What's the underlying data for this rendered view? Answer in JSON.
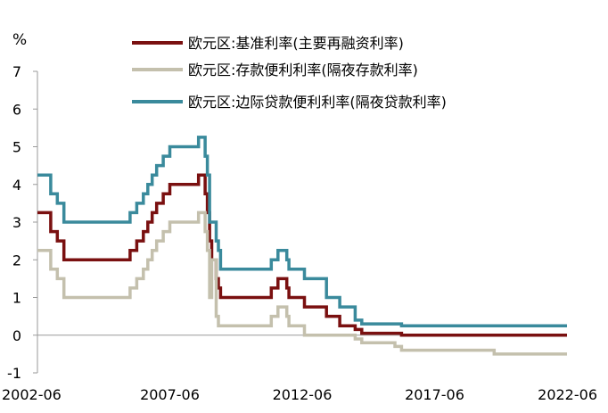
{
  "chart_data": {
    "type": "line",
    "ylabel": "%",
    "ylim": [
      -1,
      7
    ],
    "yticks": [
      -1,
      0,
      1,
      2,
      3,
      4,
      5,
      6,
      7
    ],
    "xlim": [
      "2002-06",
      "2022-06"
    ],
    "xticks": [
      "2002-06",
      "2007-06",
      "2012-06",
      "2017-06",
      "2022-06"
    ],
    "legend_position": "top",
    "series": [
      {
        "name": "欧元区:基准利率(主要再融资利率)",
        "color": "#7a1010",
        "points": [
          [
            "2002-06",
            3.25
          ],
          [
            "2002-12",
            2.75
          ],
          [
            "2003-03",
            2.5
          ],
          [
            "2003-06",
            2.0
          ],
          [
            "2005-12",
            2.25
          ],
          [
            "2006-03",
            2.5
          ],
          [
            "2006-06",
            2.75
          ],
          [
            "2006-08",
            3.0
          ],
          [
            "2006-10",
            3.25
          ],
          [
            "2006-12",
            3.5
          ],
          [
            "2007-03",
            3.75
          ],
          [
            "2007-06",
            4.0
          ],
          [
            "2008-07",
            4.25
          ],
          [
            "2008-10",
            3.75
          ],
          [
            "2008-11",
            3.25
          ],
          [
            "2008-12",
            2.5
          ],
          [
            "2009-01",
            2.0
          ],
          [
            "2009-03",
            1.5
          ],
          [
            "2009-04",
            1.25
          ],
          [
            "2009-05",
            1.0
          ],
          [
            "2011-04",
            1.25
          ],
          [
            "2011-07",
            1.5
          ],
          [
            "2011-11",
            1.25
          ],
          [
            "2011-12",
            1.0
          ],
          [
            "2012-07",
            0.75
          ],
          [
            "2013-05",
            0.5
          ],
          [
            "2013-11",
            0.25
          ],
          [
            "2014-06",
            0.15
          ],
          [
            "2014-09",
            0.05
          ],
          [
            "2016-03",
            0.0
          ],
          [
            "2022-06",
            0.0
          ]
        ]
      },
      {
        "name": "欧元区:存款便利利率(隔夜存款利率)",
        "color": "#c4c0ad",
        "points": [
          [
            "2002-06",
            2.25
          ],
          [
            "2002-12",
            1.75
          ],
          [
            "2003-03",
            1.5
          ],
          [
            "2003-06",
            1.0
          ],
          [
            "2005-12",
            1.25
          ],
          [
            "2006-03",
            1.5
          ],
          [
            "2006-06",
            1.75
          ],
          [
            "2006-08",
            2.0
          ],
          [
            "2006-10",
            2.25
          ],
          [
            "2006-12",
            2.5
          ],
          [
            "2007-03",
            2.75
          ],
          [
            "2007-06",
            3.0
          ],
          [
            "2008-07",
            3.25
          ],
          [
            "2008-10",
            2.75
          ],
          [
            "2008-11",
            2.25
          ],
          [
            "2008-12",
            1.0
          ],
          [
            "2009-01",
            2.0
          ],
          [
            "2009-03",
            0.5
          ],
          [
            "2009-04",
            0.25
          ],
          [
            "2011-04",
            0.5
          ],
          [
            "2011-07",
            0.75
          ],
          [
            "2011-11",
            0.5
          ],
          [
            "2011-12",
            0.25
          ],
          [
            "2012-07",
            0.0
          ],
          [
            "2014-06",
            -0.1
          ],
          [
            "2014-09",
            -0.2
          ],
          [
            "2015-12",
            -0.3
          ],
          [
            "2016-03",
            -0.4
          ],
          [
            "2019-09",
            -0.5
          ],
          [
            "2022-06",
            -0.5
          ]
        ]
      },
      {
        "name": "欧元区:边际贷款便利利率(隔夜贷款利率)",
        "color": "#3a8a9c",
        "points": [
          [
            "2002-06",
            4.25
          ],
          [
            "2002-12",
            3.75
          ],
          [
            "2003-03",
            3.5
          ],
          [
            "2003-06",
            3.0
          ],
          [
            "2005-12",
            3.25
          ],
          [
            "2006-03",
            3.5
          ],
          [
            "2006-06",
            3.75
          ],
          [
            "2006-08",
            4.0
          ],
          [
            "2006-10",
            4.25
          ],
          [
            "2006-12",
            4.5
          ],
          [
            "2007-03",
            4.75
          ],
          [
            "2007-06",
            5.0
          ],
          [
            "2008-07",
            5.25
          ],
          [
            "2008-10",
            4.75
          ],
          [
            "2008-11",
            4.25
          ],
          [
            "2008-12",
            3.0
          ],
          [
            "2009-01",
            3.0
          ],
          [
            "2009-03",
            2.5
          ],
          [
            "2009-04",
            2.25
          ],
          [
            "2009-05",
            1.75
          ],
          [
            "2011-04",
            2.0
          ],
          [
            "2011-07",
            2.25
          ],
          [
            "2011-11",
            2.0
          ],
          [
            "2011-12",
            1.75
          ],
          [
            "2012-07",
            1.5
          ],
          [
            "2013-05",
            1.0
          ],
          [
            "2013-11",
            0.75
          ],
          [
            "2014-06",
            0.4
          ],
          [
            "2014-09",
            0.3
          ],
          [
            "2016-03",
            0.25
          ],
          [
            "2022-06",
            0.25
          ]
        ]
      }
    ]
  }
}
